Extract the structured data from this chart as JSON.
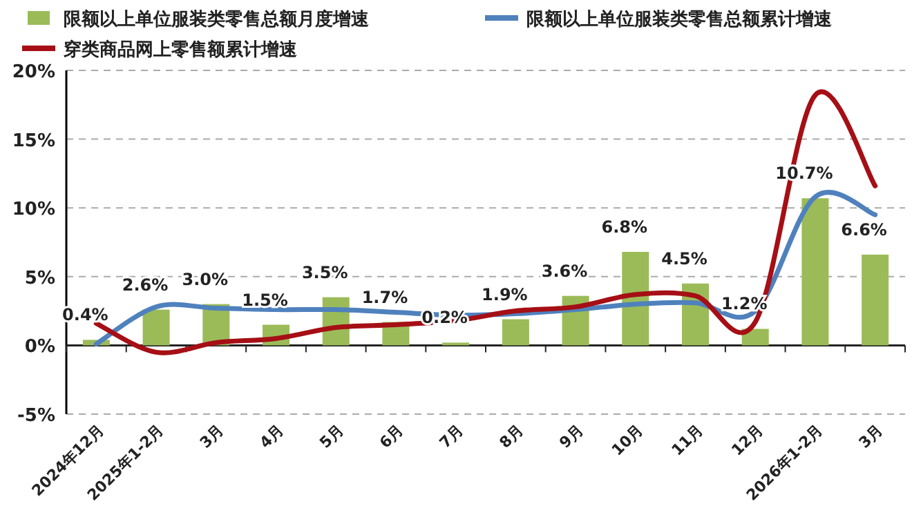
{
  "chart_data": {
    "type": "bar",
    "categories": [
      "2024年12月",
      "2025年1-2月",
      "3月",
      "4月",
      "5月",
      "6月",
      "7月",
      "8月",
      "9月",
      "10月",
      "11月",
      "12月",
      "2026年1-2月",
      "3月"
    ],
    "series": [
      {
        "name": "限额以上单位服装类零售总额月度增速",
        "color": "#9bbb59",
        "values": [
          0.4,
          2.6,
          3.0,
          1.5,
          3.5,
          1.7,
          0.2,
          1.9,
          3.6,
          6.8,
          4.5,
          1.2,
          10.7,
          6.6
        ],
        "value_labels": [
          "0.4%",
          "2.6%",
          "3.0%",
          "1.5%",
          "3.5%",
          "1.7%",
          "0.2%",
          "1.9%",
          "3.6%",
          "6.8%",
          "4.5%",
          "1.2%",
          "10.7%",
          "6.6%"
        ]
      },
      {
        "name": "限额以上单位服装类零售总额累计增速",
        "type": "line",
        "color": "#4f81bd",
        "values": [
          0.1,
          2.8,
          2.7,
          2.6,
          2.6,
          2.4,
          2.2,
          2.3,
          2.6,
          3.0,
          3.1,
          2.5,
          10.8,
          9.5
        ]
      },
      {
        "name": "穿类商品网上零售额累计增速",
        "type": "line",
        "color": "#a50f15",
        "values": [
          1.6,
          -0.5,
          0.2,
          0.5,
          1.3,
          1.5,
          1.8,
          2.5,
          2.8,
          3.7,
          3.6,
          1.7,
          18.2,
          11.6
        ]
      }
    ],
    "ylim": [
      -5,
      20
    ],
    "yticks": [
      {
        "value": -5,
        "label": "-5%"
      },
      {
        "value": 0,
        "label": "0%"
      },
      {
        "value": 5,
        "label": "5%"
      },
      {
        "value": 10,
        "label": "10%"
      },
      {
        "value": 15,
        "label": "15%"
      },
      {
        "value": 20,
        "label": "20%"
      }
    ],
    "grid": "y",
    "legend": "top"
  }
}
